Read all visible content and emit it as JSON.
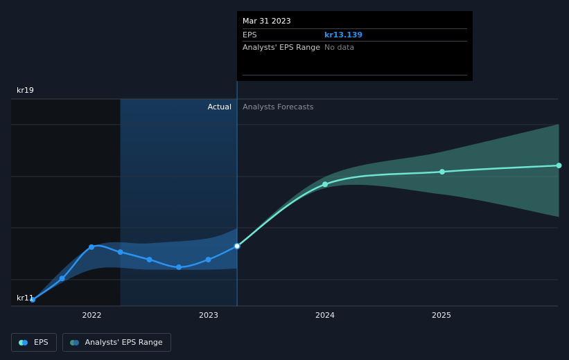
{
  "chart_data": {
    "type": "line",
    "x_axis": {
      "ticks": [
        "2022",
        "2023",
        "2024",
        "2025"
      ]
    },
    "y_axis": {
      "top_label": "kr19",
      "bottom_label": "kr11",
      "range": [
        11,
        19
      ]
    },
    "regions": {
      "actual_label": "Actual",
      "forecast_label": "Analysts Forecasts"
    },
    "series": [
      {
        "name": "EPS",
        "points": [
          {
            "x": "2021-06-30",
            "y": 11.0
          },
          {
            "x": "2021-09-30",
            "y": 11.85
          },
          {
            "x": "2021-12-31",
            "y": 13.1
          },
          {
            "x": "2022-03-31",
            "y": 12.9
          },
          {
            "x": "2022-06-30",
            "y": 12.6
          },
          {
            "x": "2022-09-30",
            "y": 12.3
          },
          {
            "x": "2022-12-31",
            "y": 12.6
          },
          {
            "x": "2023-03-31",
            "y": 13.139
          }
        ],
        "forecast": [
          {
            "x": "2023-03-31",
            "y": 13.139
          },
          {
            "x": "2023-12-31",
            "y": 15.6
          },
          {
            "x": "2024-12-31",
            "y": 16.1
          },
          {
            "x": "2025-12-31",
            "y": 16.35
          }
        ]
      },
      {
        "name": "Analysts' EPS Range",
        "actual_band": [
          {
            "x": "2021-06-30",
            "low": 11.0,
            "high": 11.0
          },
          {
            "x": "2021-12-31",
            "low": 12.2,
            "high": 13.1
          },
          {
            "x": "2022-06-30",
            "low": 12.2,
            "high": 13.25
          },
          {
            "x": "2022-12-31",
            "low": 12.2,
            "high": 13.45
          },
          {
            "x": "2023-03-31",
            "low": 12.25,
            "high": 13.85
          }
        ],
        "forecast_band": [
          {
            "x": "2023-03-31",
            "low": 13.139,
            "high": 13.139
          },
          {
            "x": "2023-12-31",
            "low": 15.45,
            "high": 15.9
          },
          {
            "x": "2024-12-31",
            "low": 15.2,
            "high": 16.9
          },
          {
            "x": "2025-12-31",
            "low": 14.3,
            "high": 18.0
          }
        ]
      }
    ]
  },
  "tooltip": {
    "date": "Mar 31 2023",
    "eps_label": "EPS",
    "eps_value": "kr13.139",
    "range_label": "Analysts' EPS Range",
    "range_value": "No data"
  },
  "legend": {
    "eps_label": "EPS",
    "range_label": "Analysts' EPS Range"
  },
  "colors": {
    "background": "#151b26",
    "eps_actual": "#2b93ef",
    "eps_forecast": "#6ee7d2",
    "band_actual": "#2b7bc4",
    "band_forecast": "#3f8f85",
    "past_shade": "#0f1217",
    "highlight": "#153455",
    "grid": "#2b313b"
  }
}
